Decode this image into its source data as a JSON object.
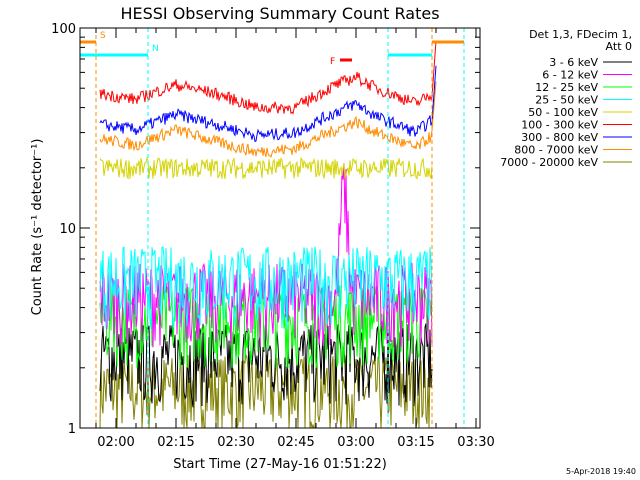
{
  "chart_data": {
    "type": "line",
    "title": "HESSI Observing Summary Count Rates",
    "xlabel": "Start Time (27-May-16 01:51:22)",
    "ylabel": "Count Rate (s⁻¹ detector⁻¹)",
    "y_scale": "log",
    "ylim": [
      1,
      100
    ],
    "xlim": [
      "01:51",
      "03:31"
    ],
    "x_ticks": [
      "02:00",
      "02:15",
      "02:30",
      "02:45",
      "03:00",
      "03:15",
      "03:30"
    ],
    "y_ticks": [
      "1",
      "10",
      "100"
    ],
    "legend_position": "top-right",
    "legend_header": [
      "Det 1,3, FDecim 1,",
      "Att 0"
    ],
    "series": [
      {
        "name": "3 - 6 keV",
        "color": "#000000",
        "level": 2.3
      },
      {
        "name": "6 - 12 keV",
        "color": "#ff00ff",
        "level": 4.6
      },
      {
        "name": "12 - 25 keV",
        "color": "#00ff00",
        "level": 3.6
      },
      {
        "name": "25 - 50 keV",
        "color": "#00ffff",
        "level": 5.6
      },
      {
        "name": "50 - 100 keV",
        "color": "#d4d400",
        "level": 20
      },
      {
        "name": "100 - 300 keV",
        "color": "#ff0000",
        "points": [
          [
            "01:56",
            47
          ],
          [
            "02:05",
            44
          ],
          [
            "02:15",
            52
          ],
          [
            "02:25",
            47
          ],
          [
            "02:35",
            40
          ],
          [
            "02:45",
            40
          ],
          [
            "02:55",
            52
          ],
          [
            "03:00",
            57
          ],
          [
            "03:05",
            50
          ],
          [
            "03:15",
            42
          ],
          [
            "03:20",
            48
          ]
        ]
      },
      {
        "name": "300 - 800 keV",
        "color": "#0000ff",
        "points": [
          [
            "01:56",
            33
          ],
          [
            "02:05",
            31
          ],
          [
            "02:15",
            37
          ],
          [
            "02:25",
            33
          ],
          [
            "02:35",
            29
          ],
          [
            "02:45",
            30
          ],
          [
            "02:55",
            38
          ],
          [
            "03:00",
            42
          ],
          [
            "03:05",
            36
          ],
          [
            "03:15",
            30
          ],
          [
            "03:20",
            36
          ]
        ]
      },
      {
        "name": "800 - 7000 keV",
        "color": "#ff8c00",
        "points": [
          [
            "01:56",
            28
          ],
          [
            "02:05",
            26
          ],
          [
            "02:15",
            31
          ],
          [
            "02:25",
            27
          ],
          [
            "02:35",
            24
          ],
          [
            "02:45",
            25
          ],
          [
            "02:55",
            31
          ],
          [
            "03:00",
            34
          ],
          [
            "03:05",
            30
          ],
          [
            "03:15",
            25
          ],
          [
            "03:20",
            30
          ]
        ]
      },
      {
        "name": "7000 - 20000 keV",
        "color": "#808000",
        "level": 1.6
      }
    ],
    "flag_labels": {
      "saa": "S",
      "night": "N",
      "flare": "F"
    }
  },
  "footer": {
    "date": "5-Apr-2018 19:40"
  }
}
